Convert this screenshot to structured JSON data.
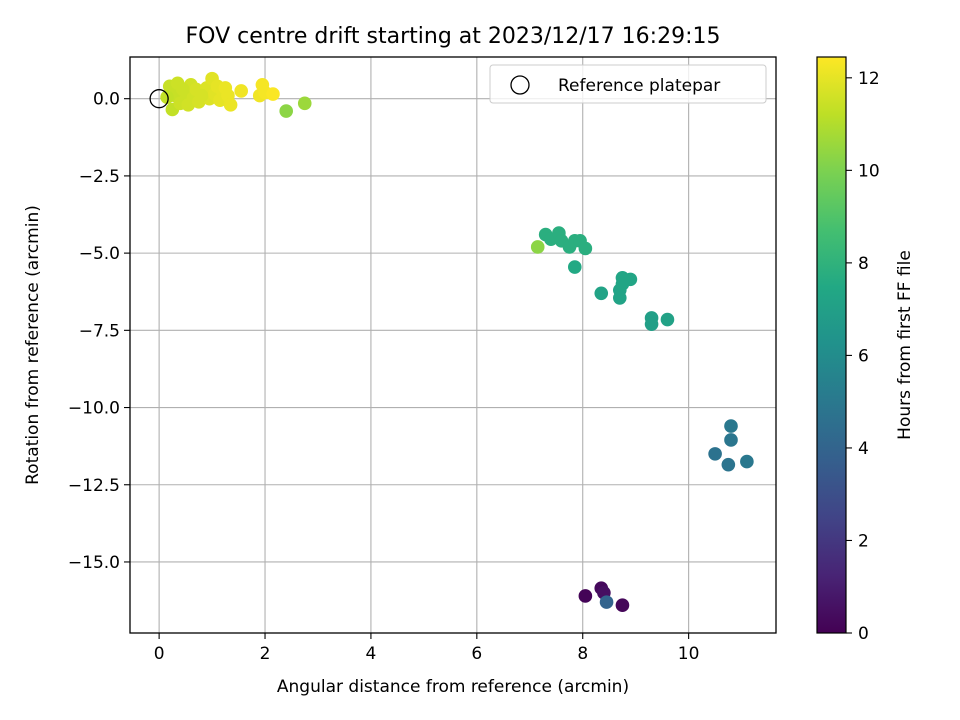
{
  "chart_data": {
    "type": "scatter",
    "title": "FOV centre drift starting at 2023/12/17 16:29:15",
    "xlabel": "Angular distance from reference (arcmin)",
    "ylabel": "Rotation from reference (arcmin)",
    "xlim": [
      -0.55,
      11.65
    ],
    "ylim": [
      -17.3,
      1.35
    ],
    "x_ticks": [
      0,
      2,
      4,
      6,
      8,
      10
    ],
    "y_ticks": [
      0.0,
      -2.5,
      -5.0,
      -7.5,
      -10.0,
      -12.5,
      -15.0
    ],
    "grid": true,
    "legend": {
      "position": "top-right",
      "entries": [
        "Reference platepar"
      ]
    },
    "reference_point": {
      "label": "Reference platepar",
      "x": 0,
      "y": 0
    },
    "colorbar": {
      "label": "Hours from first FF file",
      "range": [
        0,
        12.45
      ],
      "ticks": [
        0,
        2,
        4,
        6,
        8,
        10,
        12
      ],
      "colormap": "viridis"
    },
    "points": [
      {
        "x": 8.05,
        "y": -16.1,
        "c": 0.1
      },
      {
        "x": 8.35,
        "y": -15.85,
        "c": 0.3
      },
      {
        "x": 8.4,
        "y": -16.0,
        "c": 0.5
      },
      {
        "x": 8.75,
        "y": -16.4,
        "c": 0.2
      },
      {
        "x": 8.45,
        "y": -16.3,
        "c": 4.0
      },
      {
        "x": 10.5,
        "y": -11.5,
        "c": 4.7
      },
      {
        "x": 10.75,
        "y": -11.85,
        "c": 4.8
      },
      {
        "x": 10.8,
        "y": -11.05,
        "c": 4.9
      },
      {
        "x": 10.8,
        "y": -10.6,
        "c": 5.0
      },
      {
        "x": 11.1,
        "y": -11.75,
        "c": 5.0
      },
      {
        "x": 9.3,
        "y": -7.1,
        "c": 7.0
      },
      {
        "x": 9.3,
        "y": -7.3,
        "c": 7.0
      },
      {
        "x": 9.6,
        "y": -7.15,
        "c": 7.1
      },
      {
        "x": 8.35,
        "y": -6.3,
        "c": 7.2
      },
      {
        "x": 8.7,
        "y": -6.2,
        "c": 7.2
      },
      {
        "x": 8.7,
        "y": -6.45,
        "c": 7.2
      },
      {
        "x": 8.75,
        "y": -5.8,
        "c": 7.3
      },
      {
        "x": 8.9,
        "y": -5.85,
        "c": 7.3
      },
      {
        "x": 8.75,
        "y": -6.0,
        "c": 7.3
      },
      {
        "x": 7.85,
        "y": -5.45,
        "c": 7.5
      },
      {
        "x": 7.3,
        "y": -4.4,
        "c": 7.8
      },
      {
        "x": 7.4,
        "y": -4.55,
        "c": 7.8
      },
      {
        "x": 7.55,
        "y": -4.35,
        "c": 7.8
      },
      {
        "x": 7.6,
        "y": -4.6,
        "c": 7.8
      },
      {
        "x": 7.75,
        "y": -4.8,
        "c": 7.8
      },
      {
        "x": 7.85,
        "y": -4.6,
        "c": 7.8
      },
      {
        "x": 7.95,
        "y": -4.6,
        "c": 7.8
      },
      {
        "x": 8.05,
        "y": -4.85,
        "c": 7.8
      },
      {
        "x": 7.15,
        "y": -4.8,
        "c": 10.3
      },
      {
        "x": 2.4,
        "y": -0.4,
        "c": 10.3
      },
      {
        "x": 2.75,
        "y": -0.15,
        "c": 10.6
      },
      {
        "x": 0.25,
        "y": -0.35,
        "c": 11.3
      },
      {
        "x": 0.2,
        "y": 0.4,
        "c": 11.4
      },
      {
        "x": 0.3,
        "y": 0.1,
        "c": 11.4
      },
      {
        "x": 0.35,
        "y": 0.5,
        "c": 11.5
      },
      {
        "x": 0.4,
        "y": -0.15,
        "c": 11.5
      },
      {
        "x": 0.5,
        "y": 0.2,
        "c": 11.5
      },
      {
        "x": 0.55,
        "y": -0.2,
        "c": 11.6
      },
      {
        "x": 0.6,
        "y": 0.45,
        "c": 11.6
      },
      {
        "x": 0.65,
        "y": 0.05,
        "c": 11.6
      },
      {
        "x": 0.7,
        "y": 0.3,
        "c": 11.7
      },
      {
        "x": 0.75,
        "y": -0.1,
        "c": 11.7
      },
      {
        "x": 0.85,
        "y": 0.2,
        "c": 11.7
      },
      {
        "x": 0.9,
        "y": 0.35,
        "c": 11.8
      },
      {
        "x": 0.95,
        "y": 0.0,
        "c": 11.8
      },
      {
        "x": 1.0,
        "y": 0.65,
        "c": 11.9
      },
      {
        "x": 1.05,
        "y": 0.15,
        "c": 11.9
      },
      {
        "x": 1.1,
        "y": 0.4,
        "c": 12.0
      },
      {
        "x": 1.15,
        "y": -0.05,
        "c": 12.0
      },
      {
        "x": 1.2,
        "y": 0.25,
        "c": 12.0
      },
      {
        "x": 1.25,
        "y": 0.35,
        "c": 12.1
      },
      {
        "x": 1.3,
        "y": 0.1,
        "c": 12.1
      },
      {
        "x": 1.35,
        "y": -0.2,
        "c": 12.1
      },
      {
        "x": 1.55,
        "y": 0.25,
        "c": 12.2
      },
      {
        "x": 1.9,
        "y": 0.1,
        "c": 12.2
      },
      {
        "x": 1.95,
        "y": 0.45,
        "c": 12.3
      },
      {
        "x": 2.0,
        "y": 0.2,
        "c": 12.3
      },
      {
        "x": 2.15,
        "y": 0.15,
        "c": 12.4
      },
      {
        "x": 0.15,
        "y": 0.05,
        "c": 11.3
      },
      {
        "x": 0.45,
        "y": 0.3,
        "c": 11.5
      },
      {
        "x": 0.8,
        "y": 0.1,
        "c": 11.7
      }
    ]
  }
}
